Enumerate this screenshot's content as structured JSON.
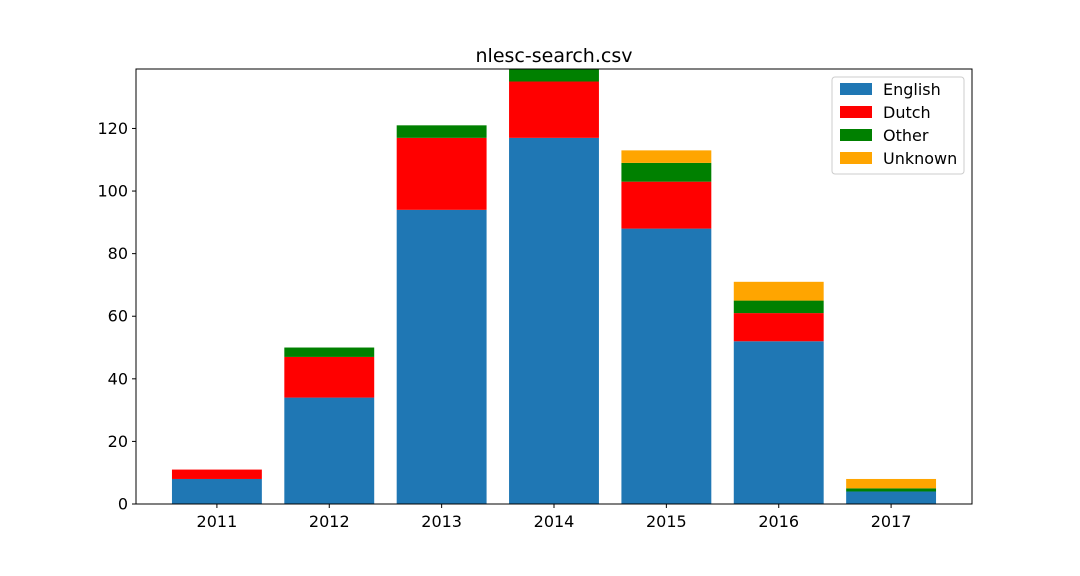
{
  "chart_data": {
    "type": "bar",
    "stacked": true,
    "title": "nlesc-search.csv",
    "xlabel": "",
    "ylabel": "",
    "categories": [
      "2011",
      "2012",
      "2013",
      "2014",
      "2015",
      "2016",
      "2017"
    ],
    "ylim": [
      0,
      139
    ],
    "yticks": [
      "0",
      "20",
      "40",
      "60",
      "80",
      "100",
      "120"
    ],
    "legend_position": "top-right",
    "grid": false,
    "series": [
      {
        "name": "English",
        "color": "#1f77b4",
        "values": [
          8,
          34,
          94,
          117,
          88,
          52,
          4
        ]
      },
      {
        "name": "Dutch",
        "color": "#ff0000",
        "values": [
          3,
          13,
          23,
          18,
          15,
          9,
          0
        ]
      },
      {
        "name": "Other",
        "color": "#008000",
        "values": [
          0,
          3,
          4,
          4,
          6,
          4,
          1
        ]
      },
      {
        "name": "Unknown",
        "color": "#ffa500",
        "values": [
          0,
          0,
          0,
          0,
          4,
          6,
          3
        ]
      }
    ]
  }
}
